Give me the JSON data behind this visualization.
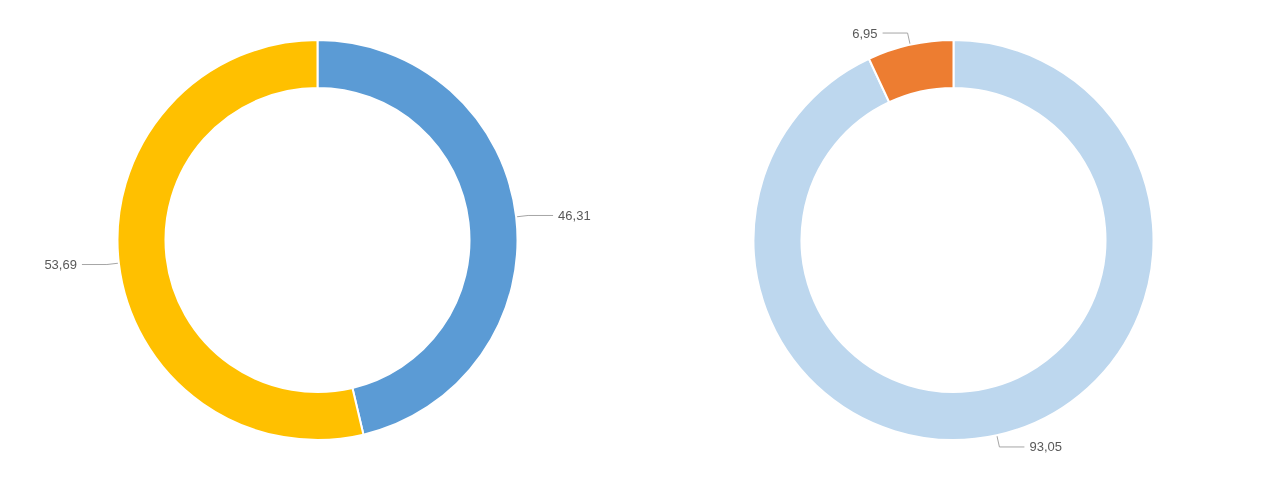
{
  "chart_data": [
    {
      "type": "donut",
      "categories": [
        null,
        null
      ],
      "values": [
        46.31,
        53.69
      ],
      "colors": [
        "#5b9bd5",
        "#ffc000"
      ],
      "value_labels": [
        "46,31",
        "53,69"
      ]
    },
    {
      "type": "donut",
      "categories": [
        null,
        null
      ],
      "values": [
        93.05,
        6.95
      ],
      "colors": [
        "#bdd7ee",
        "#ed7d31"
      ],
      "value_labels": [
        "93,05",
        "6,95"
      ]
    }
  ]
}
